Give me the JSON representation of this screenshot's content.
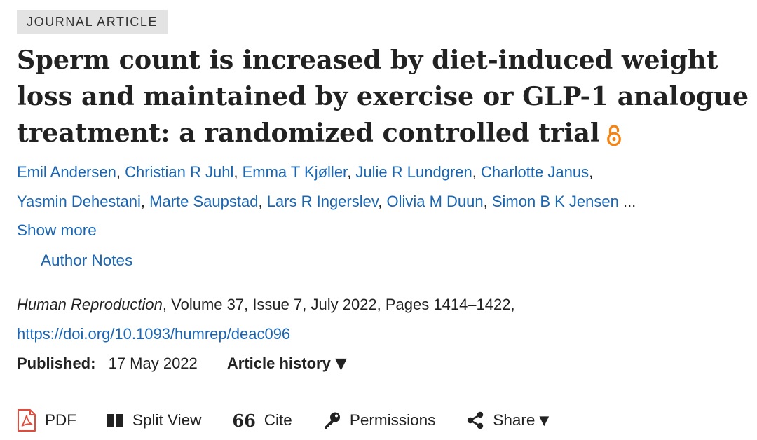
{
  "article_type": "JOURNAL ARTICLE",
  "title": "Sperm count is increased by diet-induced weight loss and maintained by exercise or GLP-1 analogue treatment: a randomized controlled trial",
  "authors": [
    "Emil Andersen",
    "Christian R Juhl",
    "Emma T Kjøller",
    "Julie R Lundgren",
    "Charlotte Janus",
    "Yasmin Dehestani",
    "Marte Saupstad",
    "Lars R Ingerslev",
    "Olivia M Duun",
    "Simon B K Jensen"
  ],
  "authors_separator": ", ",
  "authors_ellipsis": " ...",
  "show_more_label": "Show more",
  "author_notes_label": "Author Notes",
  "citation": {
    "journal": "Human Reproduction",
    "details": ", Volume 37, Issue 7, July 2022, Pages 1414–1422,",
    "doi": "https://doi.org/10.1093/humrep/deac096"
  },
  "published": {
    "label": "Published:",
    "date": "17 May 2022",
    "history_label": "Article history",
    "history_caret": "▼"
  },
  "toolbar": {
    "pdf": "PDF",
    "split_view": "Split View",
    "cite": "Cite",
    "permissions": "Permissions",
    "share": "Share",
    "share_caret": "▼",
    "cite_glyph": "66"
  },
  "colors": {
    "link": "#1a66b3",
    "text": "#222222",
    "open_access": "#f68212",
    "pdf_red": "#e04b3c",
    "badge_bg": "#e3e3e3"
  }
}
